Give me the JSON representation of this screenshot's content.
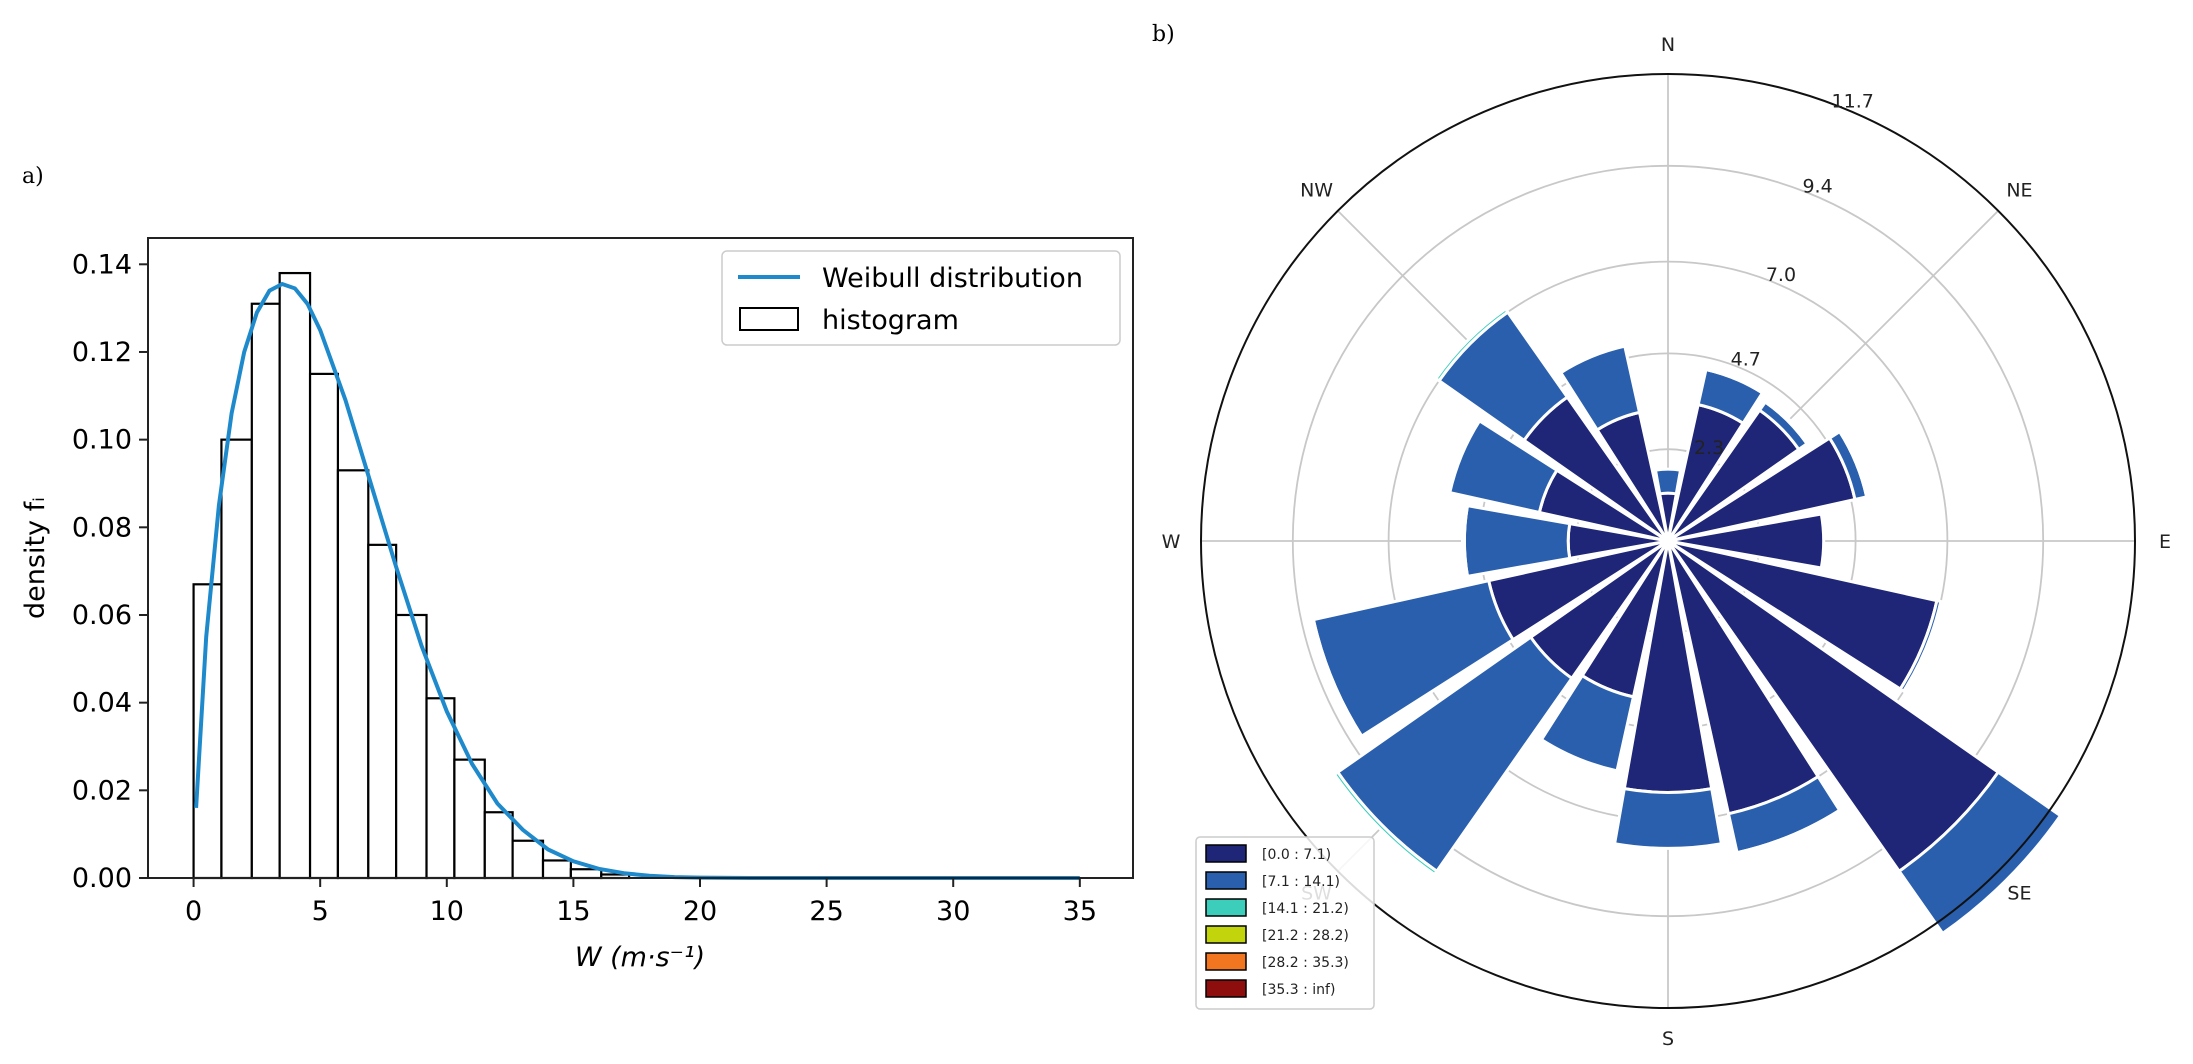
{
  "chart_data": [
    {
      "panel_label": "a)",
      "type": "bar",
      "subtype": "histogram-with-density-curve",
      "xlabel": "W (m·s⁻¹)",
      "ylabel": "density fᵢ",
      "xlim": [
        -1.8,
        37.1
      ],
      "ylim": [
        0,
        0.146
      ],
      "xticks": [
        0,
        5,
        10,
        15,
        20,
        25,
        30,
        35
      ],
      "xtick_labels": [
        "0",
        "5",
        "10",
        "15",
        "20",
        "25",
        "30",
        "35"
      ],
      "yticks": [
        0.0,
        0.02,
        0.04,
        0.06,
        0.08,
        0.1,
        0.12,
        0.14
      ],
      "ytick_labels": [
        "0.00",
        "0.02",
        "0.04",
        "0.06",
        "0.08",
        "0.10",
        "0.12",
        "0.14"
      ],
      "bin_edges": [
        0,
        1.1,
        2.3,
        3.4,
        4.6,
        5.7,
        6.9,
        8.0,
        9.2,
        10.3,
        11.5,
        12.6,
        13.8,
        14.9,
        16.1,
        17.2
      ],
      "bin_values": [
        0.067,
        0.1,
        0.131,
        0.138,
        0.115,
        0.093,
        0.076,
        0.06,
        0.041,
        0.027,
        0.015,
        0.0085,
        0.004,
        0.002,
        0.0008
      ],
      "curve": {
        "name": "Weibull distribution",
        "color": "#1f8acb",
        "x": [
          0.1,
          0.5,
          1,
          1.5,
          2,
          2.5,
          3,
          3.5,
          4,
          4.5,
          5,
          6,
          7,
          8,
          9,
          10,
          11,
          12,
          13,
          14,
          15,
          16,
          17,
          18,
          19,
          20,
          22,
          25,
          30,
          35
        ],
        "y": [
          0.016,
          0.055,
          0.085,
          0.106,
          0.12,
          0.129,
          0.134,
          0.1355,
          0.1345,
          0.131,
          0.125,
          0.109,
          0.09,
          0.071,
          0.053,
          0.038,
          0.026,
          0.017,
          0.011,
          0.0065,
          0.0038,
          0.0021,
          0.0011,
          0.0005,
          0.0002,
          0.0001,
          0,
          0,
          0,
          0
        ]
      },
      "legend": {
        "placement": "top-right",
        "entries": [
          "Weibull distribution",
          "histogram"
        ]
      }
    },
    {
      "panel_label": "b)",
      "type": "windrose",
      "direction_labels": [
        "N",
        "NE",
        "E",
        "SE",
        "S",
        "SW",
        "W",
        "NW"
      ],
      "radial_max": 11.7,
      "radial_ticks": [
        2.3,
        4.7,
        7.0,
        9.4,
        11.7
      ],
      "radial_tick_labels": [
        "2.3",
        "4.7",
        "7.0",
        "9.4",
        "11.7"
      ],
      "sector_count": 16,
      "sector_width_deg": 20,
      "sectors": [
        {
          "direction": "N",
          "angle_deg": 0,
          "values": [
            1.2,
            0.6,
            0,
            0,
            0,
            0
          ]
        },
        {
          "direction": "NNE",
          "angle_deg": 22.5,
          "values": [
            3.5,
            0.9,
            0.05,
            0,
            0,
            0
          ]
        },
        {
          "direction": "NE",
          "angle_deg": 45,
          "values": [
            4.0,
            0.25,
            0.05,
            0,
            0,
            0
          ]
        },
        {
          "direction": "ENE",
          "angle_deg": 67.5,
          "values": [
            4.8,
            0.3,
            0.05,
            0,
            0,
            0
          ]
        },
        {
          "direction": "E",
          "angle_deg": 90,
          "values": [
            3.9,
            0,
            0,
            0,
            0,
            0
          ]
        },
        {
          "direction": "ESE",
          "angle_deg": 112.5,
          "values": [
            6.9,
            0.1,
            0,
            0,
            0,
            0
          ]
        },
        {
          "direction": "SE",
          "angle_deg": 135,
          "values": [
            10.1,
            1.9,
            0,
            0,
            0,
            0
          ]
        },
        {
          "direction": "SSE",
          "angle_deg": 157.5,
          "values": [
            7.0,
            1.0,
            0.05,
            0,
            0,
            0
          ]
        },
        {
          "direction": "S",
          "angle_deg": 180,
          "values": [
            6.3,
            1.4,
            0,
            0,
            0,
            0
          ]
        },
        {
          "direction": "SSW",
          "angle_deg": 202.5,
          "values": [
            4.0,
            1.9,
            0,
            0,
            0,
            0
          ]
        },
        {
          "direction": "SW",
          "angle_deg": 225,
          "values": [
            4.2,
            5.9,
            0.1,
            0,
            0,
            0
          ]
        },
        {
          "direction": "WSW",
          "angle_deg": 247.5,
          "values": [
            4.6,
            4.5,
            0.05,
            0,
            0,
            0
          ]
        },
        {
          "direction": "W",
          "angle_deg": 270,
          "values": [
            2.5,
            2.6,
            0.05,
            0,
            0,
            0
          ]
        },
        {
          "direction": "WNW",
          "angle_deg": 292.5,
          "values": [
            3.3,
            2.3,
            0,
            0,
            0,
            0
          ]
        },
        {
          "direction": "NW",
          "angle_deg": 315,
          "values": [
            4.4,
            2.6,
            0.1,
            0,
            0,
            0
          ]
        },
        {
          "direction": "NNW",
          "angle_deg": 337.5,
          "values": [
            3.3,
            1.7,
            0,
            0,
            0,
            0
          ]
        }
      ],
      "legend": {
        "placement": "bottom-left",
        "entries": [
          {
            "label": "[0.0 : 7.1)",
            "color": "#1f2677"
          },
          {
            "label": "[7.1 : 14.1)",
            "color": "#2a5fae"
          },
          {
            "label": "[14.1 : 21.2)",
            "color": "#3ccdbb"
          },
          {
            "label": "[21.2 : 28.2)",
            "color": "#c2d40c"
          },
          {
            "label": "[28.2 : 35.3)",
            "color": "#f2751f"
          },
          {
            "label": "[35.3 : inf)",
            "color": "#8e0e0e"
          }
        ]
      }
    }
  ]
}
